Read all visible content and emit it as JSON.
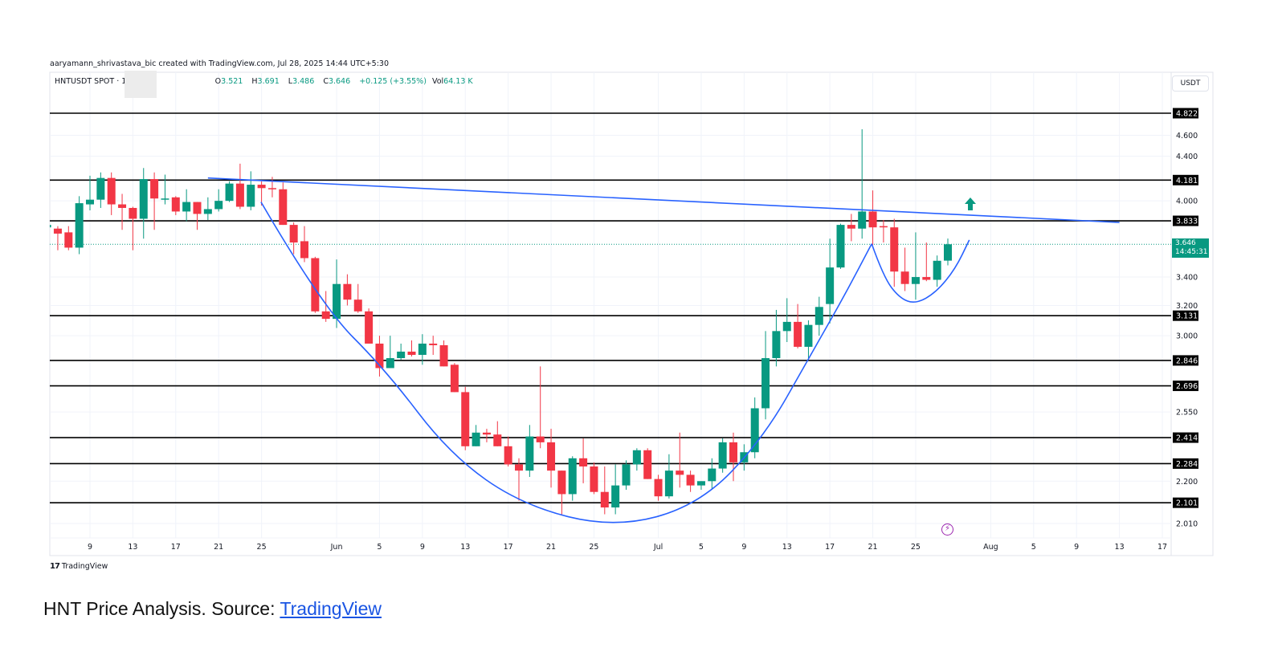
{
  "header": {
    "credit": "aaryamann_shrivastava_bic created with TradingView.com, Jul 28, 2025 14:44 UTC+5:30",
    "symbol": "HNTUSDT SPOT · 1D",
    "o_label": "O",
    "o": "3.521",
    "h_label": "H",
    "h": "3.691",
    "l_label": "L",
    "l": "3.486",
    "c_label": "C",
    "c": "3.646",
    "change": "+0.125 (+3.55%)",
    "vol_label": "Vol",
    "vol": "64.13 K"
  },
  "currency": "USDT",
  "price_tag": {
    "price": "3.646",
    "countdown": "14:45:31"
  },
  "footer": {
    "logo": "TradingView",
    "logo_mark": "17"
  },
  "caption": {
    "text": "HNT Price Analysis. Source: ",
    "link": "TradingView"
  },
  "colors": {
    "up": "#089981",
    "down": "#f23645",
    "drawing": "#2962ff",
    "level": "#000000"
  },
  "chart_data": {
    "type": "candlestick",
    "scale": "log",
    "ylim": [
      2.01,
      4.822
    ],
    "first_day": "May 5",
    "candle_fields": [
      "date",
      "open",
      "high",
      "low",
      "close"
    ],
    "candles": [
      [
        "May 5",
        3.78,
        3.8,
        3.77,
        3.8
      ],
      [
        "May 6",
        3.77,
        3.79,
        3.6,
        3.73
      ],
      [
        "May 7",
        3.74,
        3.79,
        3.6,
        3.62
      ],
      [
        "May 8",
        3.62,
        4.04,
        3.57,
        3.98
      ],
      [
        "May 9",
        3.97,
        4.22,
        3.92,
        4.01
      ],
      [
        "May 10",
        4.01,
        4.25,
        3.94,
        4.2
      ],
      [
        "May 11",
        4.2,
        4.25,
        3.88,
        3.97
      ],
      [
        "May 12",
        3.97,
        4.06,
        3.76,
        3.94
      ],
      [
        "May 13",
        3.94,
        3.95,
        3.6,
        3.85
      ],
      [
        "May 14",
        3.85,
        4.29,
        3.69,
        4.19
      ],
      [
        "May 15",
        4.19,
        4.25,
        3.76,
        4.02
      ],
      [
        "May 16",
        4.01,
        4.23,
        3.97,
        4.02
      ],
      [
        "May 17",
        4.03,
        4.04,
        3.88,
        3.91
      ],
      [
        "May 18",
        3.91,
        4.1,
        3.83,
        3.99
      ],
      [
        "May 19",
        3.99,
        3.99,
        3.76,
        3.89
      ],
      [
        "May 20",
        3.89,
        4.03,
        3.84,
        3.93
      ],
      [
        "May 21",
        3.93,
        4.1,
        3.91,
        4.0
      ],
      [
        "May 22",
        4.0,
        4.17,
        3.99,
        4.15
      ],
      [
        "May 23",
        4.15,
        4.33,
        3.93,
        3.95
      ],
      [
        "May 24",
        3.95,
        4.26,
        3.92,
        4.14
      ],
      [
        "May 25",
        4.14,
        4.17,
        3.96,
        4.11
      ],
      [
        "May 26",
        4.11,
        4.21,
        4.03,
        4.1
      ],
      [
        "May 27",
        4.1,
        4.16,
        3.8,
        3.8
      ],
      [
        "May 28",
        3.8,
        3.82,
        3.57,
        3.66
      ],
      [
        "May 29",
        3.67,
        3.79,
        3.51,
        3.54
      ],
      [
        "May 30",
        3.54,
        3.55,
        3.15,
        3.16
      ],
      [
        "May 31",
        3.16,
        3.3,
        3.09,
        3.11
      ],
      [
        "Jun 1",
        3.11,
        3.53,
        3.05,
        3.35
      ],
      [
        "Jun 2",
        3.35,
        3.42,
        3.2,
        3.24
      ],
      [
        "Jun 3",
        3.24,
        3.35,
        3.15,
        3.16
      ],
      [
        "Jun 4",
        3.16,
        3.18,
        2.95,
        2.95
      ],
      [
        "Jun 5",
        2.95,
        3.0,
        2.75,
        2.8
      ],
      [
        "Jun 6",
        2.8,
        3.0,
        2.8,
        2.86
      ],
      [
        "Jun 7",
        2.86,
        2.95,
        2.85,
        2.9
      ],
      [
        "Jun 8",
        2.9,
        2.97,
        2.87,
        2.88
      ],
      [
        "Jun 9",
        2.88,
        3.01,
        2.82,
        2.95
      ],
      [
        "Jun 10",
        2.95,
        3.0,
        2.88,
        2.94
      ],
      [
        "Jun 11",
        2.94,
        2.97,
        2.81,
        2.81
      ],
      [
        "Jun 12",
        2.82,
        2.83,
        2.66,
        2.66
      ],
      [
        "Jun 13",
        2.66,
        2.69,
        2.35,
        2.37
      ],
      [
        "Jun 14",
        2.37,
        2.48,
        2.37,
        2.44
      ],
      [
        "Jun 15",
        2.44,
        2.46,
        2.39,
        2.43
      ],
      [
        "Jun 16",
        2.43,
        2.5,
        2.37,
        2.37
      ],
      [
        "Jun 17",
        2.37,
        2.42,
        2.27,
        2.28
      ],
      [
        "Jun 18",
        2.28,
        2.31,
        2.11,
        2.25
      ],
      [
        "Jun 19",
        2.25,
        2.48,
        2.22,
        2.42
      ],
      [
        "Jun 20",
        2.42,
        2.81,
        2.36,
        2.39
      ],
      [
        "Jun 21",
        2.39,
        2.46,
        2.17,
        2.25
      ],
      [
        "Jun 22",
        2.25,
        2.25,
        2.05,
        2.14
      ],
      [
        "Jun 23",
        2.14,
        2.32,
        2.11,
        2.31
      ],
      [
        "Jun 24",
        2.31,
        2.41,
        2.19,
        2.27
      ],
      [
        "Jun 25",
        2.27,
        2.29,
        2.14,
        2.15
      ],
      [
        "Jun 26",
        2.15,
        2.27,
        2.05,
        2.08
      ],
      [
        "Jun 27",
        2.08,
        2.28,
        2.05,
        2.18
      ],
      [
        "Jun 28",
        2.18,
        2.3,
        2.16,
        2.28
      ],
      [
        "Jun 29",
        2.28,
        2.36,
        2.25,
        2.35
      ],
      [
        "Jun 30",
        2.35,
        2.36,
        2.21,
        2.21
      ],
      [
        "Jul 1",
        2.21,
        2.23,
        2.11,
        2.13
      ],
      [
        "Jul 2",
        2.13,
        2.33,
        2.12,
        2.25
      ],
      [
        "Jul 3",
        2.25,
        2.44,
        2.17,
        2.23
      ],
      [
        "Jul 4",
        2.23,
        2.25,
        2.15,
        2.18
      ],
      [
        "Jul 5",
        2.18,
        2.2,
        2.16,
        2.2
      ],
      [
        "Jul 6",
        2.2,
        2.31,
        2.16,
        2.26
      ],
      [
        "Jul 7",
        2.26,
        2.41,
        2.24,
        2.39
      ],
      [
        "Jul 8",
        2.39,
        2.44,
        2.2,
        2.29
      ],
      [
        "Jul 9",
        2.29,
        2.38,
        2.25,
        2.34
      ],
      [
        "Jul 10",
        2.34,
        2.63,
        2.31,
        2.57
      ],
      [
        "Jul 11",
        2.57,
        3.03,
        2.51,
        2.86
      ],
      [
        "Jul 12",
        2.86,
        3.17,
        2.81,
        3.03
      ],
      [
        "Jul 13",
        3.03,
        3.25,
        2.96,
        3.09
      ],
      [
        "Jul 14",
        3.09,
        3.21,
        2.92,
        2.93
      ],
      [
        "Jul 15",
        2.93,
        3.1,
        2.86,
        3.07
      ],
      [
        "Jul 16",
        3.07,
        3.26,
        3.0,
        3.19
      ],
      [
        "Jul 17",
        3.21,
        3.69,
        3.08,
        3.47
      ],
      [
        "Jul 18",
        3.47,
        3.81,
        3.46,
        3.8
      ],
      [
        "Jul 19",
        3.8,
        3.89,
        3.67,
        3.77
      ],
      [
        "Jul 20",
        3.77,
        4.66,
        3.69,
        3.91
      ],
      [
        "Jul 21",
        3.91,
        4.09,
        3.64,
        3.78
      ],
      [
        "Jul 22",
        3.79,
        3.84,
        3.66,
        3.78
      ],
      [
        "Jul 23",
        3.78,
        3.85,
        3.33,
        3.44
      ],
      [
        "Jul 24",
        3.44,
        3.62,
        3.3,
        3.35
      ],
      [
        "Jul 25",
        3.35,
        3.74,
        3.24,
        3.4
      ],
      [
        "Jul 26",
        3.4,
        3.66,
        3.37,
        3.38
      ],
      [
        "Jul 27",
        3.38,
        3.56,
        3.33,
        3.52
      ],
      [
        "Jul 28",
        3.521,
        3.691,
        3.486,
        3.646
      ]
    ],
    "levels": [
      "4.822",
      "4.181",
      "3.833",
      "3.131",
      "2.846",
      "2.696",
      "2.414",
      "2.284",
      "2.101"
    ],
    "y_ticks": [
      "4.600",
      "4.400",
      "4.000",
      "3.400",
      "3.200",
      "3.000",
      "2.550",
      "2.200",
      "2.010"
    ],
    "x_ticks": [
      {
        "label": "9",
        "day": 4
      },
      {
        "label": "13",
        "day": 8
      },
      {
        "label": "17",
        "day": 12
      },
      {
        "label": "21",
        "day": 16
      },
      {
        "label": "25",
        "day": 20
      },
      {
        "label": "Jun",
        "day": 27
      },
      {
        "label": "5",
        "day": 31
      },
      {
        "label": "9",
        "day": 35
      },
      {
        "label": "13",
        "day": 39
      },
      {
        "label": "17",
        "day": 43
      },
      {
        "label": "21",
        "day": 47
      },
      {
        "label": "25",
        "day": 51
      },
      {
        "label": "Jul",
        "day": 57
      },
      {
        "label": "5",
        "day": 61
      },
      {
        "label": "9",
        "day": 65
      },
      {
        "label": "13",
        "day": 69
      },
      {
        "label": "17",
        "day": 73
      },
      {
        "label": "21",
        "day": 77
      },
      {
        "label": "25",
        "day": 81
      },
      {
        "label": "Aug",
        "day": 88
      },
      {
        "label": "5",
        "day": 92
      },
      {
        "label": "9",
        "day": 96
      },
      {
        "label": "13",
        "day": 100
      },
      {
        "label": "17",
        "day": 104
      }
    ],
    "drawings": {
      "trendline": [
        [
          15.0,
          4.2
        ],
        [
          100.0,
          3.82
        ]
      ],
      "cup": [
        [
          19.95,
          3.99
        ],
        [
          25.57,
          3.2
        ],
        [
          31.56,
          2.79
        ],
        [
          37.55,
          2.33
        ],
        [
          44.3,
          2.09
        ],
        [
          52.9,
          1.99
        ],
        [
          60.8,
          2.09
        ],
        [
          66.8,
          2.41
        ],
        [
          71.3,
          2.89
        ],
        [
          74.3,
          3.26
        ],
        [
          76.9,
          3.65
        ]
      ],
      "handle": [
        [
          76.9,
          3.65
        ],
        [
          78.0,
          3.4
        ],
        [
          79.5,
          3.25
        ],
        [
          81.0,
          3.21
        ],
        [
          82.9,
          3.29
        ],
        [
          84.7,
          3.46
        ],
        [
          86.0,
          3.68
        ]
      ],
      "arrow_up": [
        86.0,
        3.98
      ]
    }
  }
}
